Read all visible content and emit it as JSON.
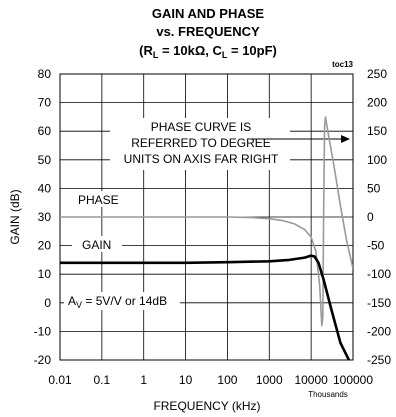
{
  "chart_data": {
    "type": "line",
    "title_lines": [
      "GAIN AND PHASE",
      "vs. FREQUENCY"
    ],
    "title_line3": {
      "prefix": "(R",
      "sub1": "L",
      "mid": " = 10kΩ, C",
      "sub2": "L",
      "suffix": " = 10pF)"
    },
    "chart_id": "toc13",
    "xlabel": "FREQUENCY (kHz)",
    "x_scale": "log",
    "xlim": [
      0.01,
      100000
    ],
    "x_ticks": [
      "0.01",
      "0.1",
      "1",
      "10",
      "100",
      "1000",
      "10000",
      "100000"
    ],
    "x_ticks_note": "Thousands",
    "ylabel": "GAIN (dB)",
    "ylim": [
      -20,
      80
    ],
    "y_ticks": [
      "-20",
      "-10",
      "0",
      "10",
      "20",
      "30",
      "40",
      "50",
      "60",
      "70",
      "80"
    ],
    "y2lim": [
      -250,
      250
    ],
    "y2_ticks": [
      "-250",
      "-200",
      "-150",
      "-100",
      "-50",
      "0",
      "50",
      "100",
      "150",
      "200",
      "250"
    ],
    "grid": true,
    "annotations": {
      "phase_label": "PHASE",
      "gain_label": "GAIN",
      "note_lines": [
        "PHASE CURVE IS",
        "REFERRED TO DEGREE",
        "UNITS ON AXIS FAR RIGHT"
      ],
      "av": {
        "prefix": "A",
        "sub": "V",
        "suffix": " = 5V/V or 14dB"
      }
    },
    "series": [
      {
        "axis": "left",
        "color": "#000000",
        "x": [
          0.01,
          0.1,
          1,
          10,
          100,
          1000,
          3000,
          7000,
          10000,
          12000,
          15000,
          20000,
          30000,
          50000,
          80000
        ],
        "y": [
          14,
          14,
          14,
          14,
          14.2,
          14.5,
          15,
          15.8,
          16.5,
          16.2,
          14,
          8,
          -2,
          -14,
          -20
        ]
      },
      {
        "axis": "right",
        "color": "#999999",
        "x": [
          0.01,
          0.1,
          1,
          10,
          100,
          400,
          1000,
          2000,
          4000,
          7000,
          10000,
          13000,
          16000,
          18000,
          19000,
          20000,
          21000,
          22000,
          25000,
          35000,
          50000,
          70000,
          100000
        ],
        "y": [
          0,
          0,
          0,
          0,
          0,
          -1,
          -3,
          -6,
          -12,
          -22,
          -35,
          -60,
          -120,
          -190,
          -175,
          20,
          160,
          175,
          150,
          90,
          20,
          -40,
          -90
        ]
      }
    ]
  }
}
